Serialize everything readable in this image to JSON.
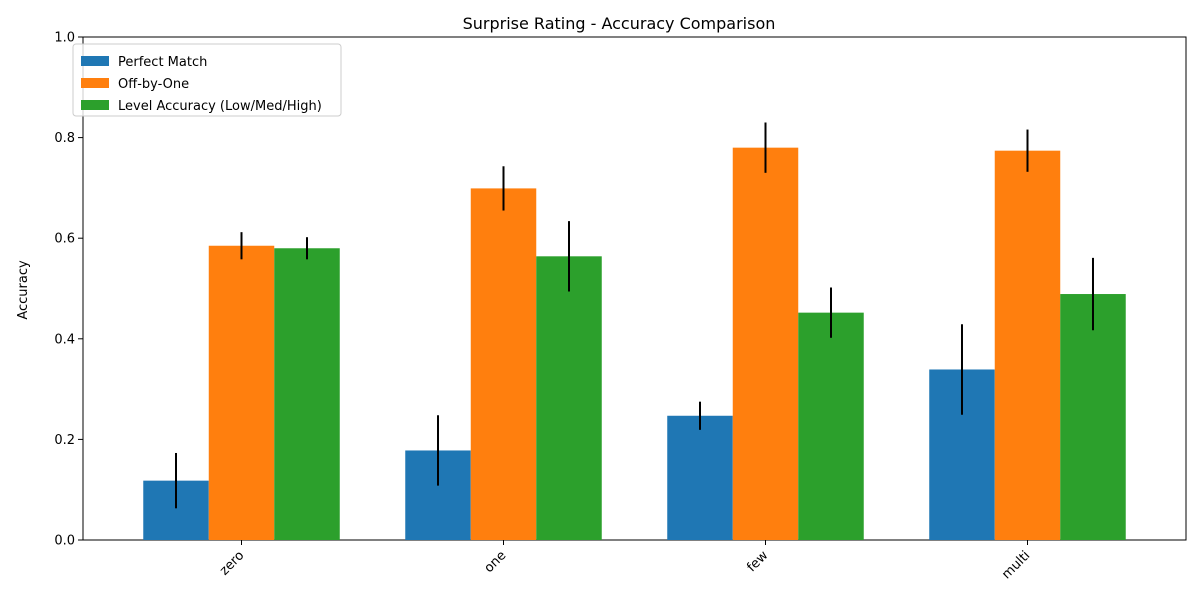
{
  "chart_data": {
    "type": "bar",
    "title": "Surprise Rating - Accuracy Comparison",
    "xlabel": "",
    "ylabel": "Accuracy",
    "ylim": [
      0,
      1.0
    ],
    "yticks": [
      0.0,
      0.2,
      0.4,
      0.6,
      0.8,
      1.0
    ],
    "ytick_labels": [
      "0.0",
      "0.2",
      "0.4",
      "0.6",
      "0.8",
      "1.0"
    ],
    "categories": [
      "zero",
      "one",
      "few",
      "multi"
    ],
    "legend_position": "top-left",
    "grid": false,
    "series": [
      {
        "name": "Perfect Match",
        "color": "#1f77b4",
        "values": [
          0.118,
          0.178,
          0.247,
          0.339
        ],
        "errors": [
          0.055,
          0.07,
          0.028,
          0.09
        ]
      },
      {
        "name": "Off-by-One",
        "color": "#ff7f0e",
        "values": [
          0.585,
          0.699,
          0.78,
          0.774
        ],
        "errors": [
          0.027,
          0.044,
          0.05,
          0.042
        ]
      },
      {
        "name": "Level Accuracy (Low/Med/High)",
        "color": "#2ca02c",
        "values": [
          0.58,
          0.564,
          0.452,
          0.489
        ],
        "errors": [
          0.022,
          0.07,
          0.05,
          0.072
        ]
      }
    ]
  }
}
